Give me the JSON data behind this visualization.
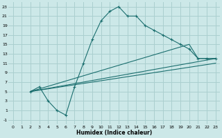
{
  "xlabel": "Humidex (Indice chaleur)",
  "bg_color": "#cce8e8",
  "grid_color": "#aacfcf",
  "line_color": "#1a6e6e",
  "xlim": [
    -0.5,
    23.5
  ],
  "ylim": [
    -2,
    24
  ],
  "xticks": [
    0,
    1,
    2,
    3,
    4,
    5,
    6,
    7,
    8,
    9,
    10,
    11,
    12,
    13,
    14,
    15,
    16,
    17,
    18,
    19,
    20,
    21,
    22,
    23
  ],
  "yticks": [
    -1,
    1,
    3,
    5,
    7,
    9,
    11,
    13,
    15,
    17,
    19,
    21,
    23
  ],
  "line1_x": [
    2,
    3,
    4,
    5,
    6,
    7,
    8,
    9,
    10,
    11,
    12,
    13,
    14,
    15,
    16,
    17,
    18,
    19,
    20,
    21,
    22,
    23
  ],
  "line1_y": [
    5,
    6,
    3,
    1,
    0,
    6,
    11,
    16,
    20,
    22,
    23,
    21,
    21,
    19,
    18,
    17,
    16,
    15,
    14,
    12,
    12,
    12
  ],
  "line2_x": [
    2,
    20,
    21,
    22,
    23
  ],
  "line2_y": [
    5,
    15,
    12,
    12,
    12
  ],
  "line3_x": [
    2,
    23
  ],
  "line3_y": [
    5,
    12
  ],
  "line4_x": [
    2,
    23
  ],
  "line4_y": [
    5,
    11
  ]
}
